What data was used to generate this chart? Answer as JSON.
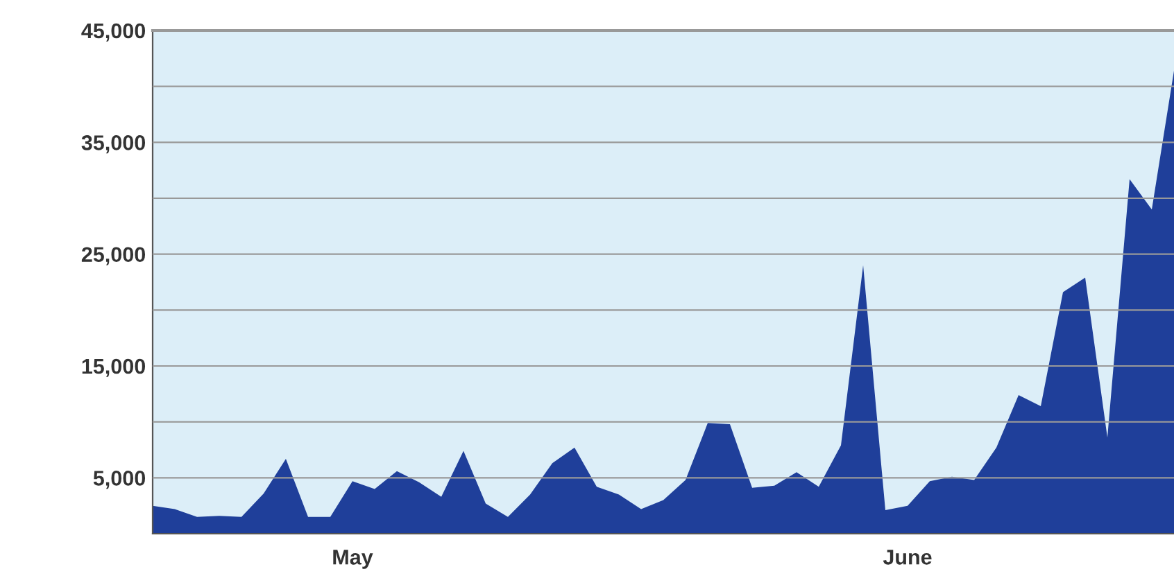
{
  "chart_data": {
    "type": "area",
    "categories": [
      null,
      null,
      null,
      null,
      null,
      null,
      null,
      null,
      null,
      "May",
      null,
      null,
      null,
      null,
      null,
      null,
      null,
      null,
      null,
      null,
      null,
      null,
      null,
      null,
      null,
      null,
      null,
      null,
      null,
      null,
      null,
      null,
      null,
      null,
      "June",
      null,
      null,
      null,
      null,
      null,
      null,
      null,
      null,
      null,
      null,
      null,
      null
    ],
    "series": [
      {
        "color": "#1f3f9a",
        "values": [
          2500,
          2200,
          1500,
          1600,
          1500,
          3600,
          6700,
          1500,
          1500,
          4700,
          4000,
          5600,
          4600,
          3300,
          7400,
          2700,
          1500,
          3500,
          6300,
          7700,
          4200,
          3500,
          2200,
          3000,
          4800,
          9900,
          9800,
          4100,
          4300,
          5500,
          4200,
          7900,
          24000,
          2100,
          2500,
          4700,
          5100,
          4800,
          7700,
          12400,
          11400,
          21600,
          22900,
          8600,
          31700,
          29000,
          41400
        ]
      }
    ],
    "ylim": [
      0,
      45000
    ],
    "yticks": [
      {
        "value": 5000,
        "label": "5,000"
      },
      {
        "value": 10000,
        "label": null
      },
      {
        "value": 15000,
        "label": "15,000"
      },
      {
        "value": 20000,
        "label": null
      },
      {
        "value": 25000,
        "label": "25,000"
      },
      {
        "value": 30000,
        "label": null
      },
      {
        "value": 35000,
        "label": "35,000"
      },
      {
        "value": 40000,
        "label": null
      },
      {
        "value": 45000,
        "label": "45,000"
      }
    ],
    "grid": "y"
  }
}
